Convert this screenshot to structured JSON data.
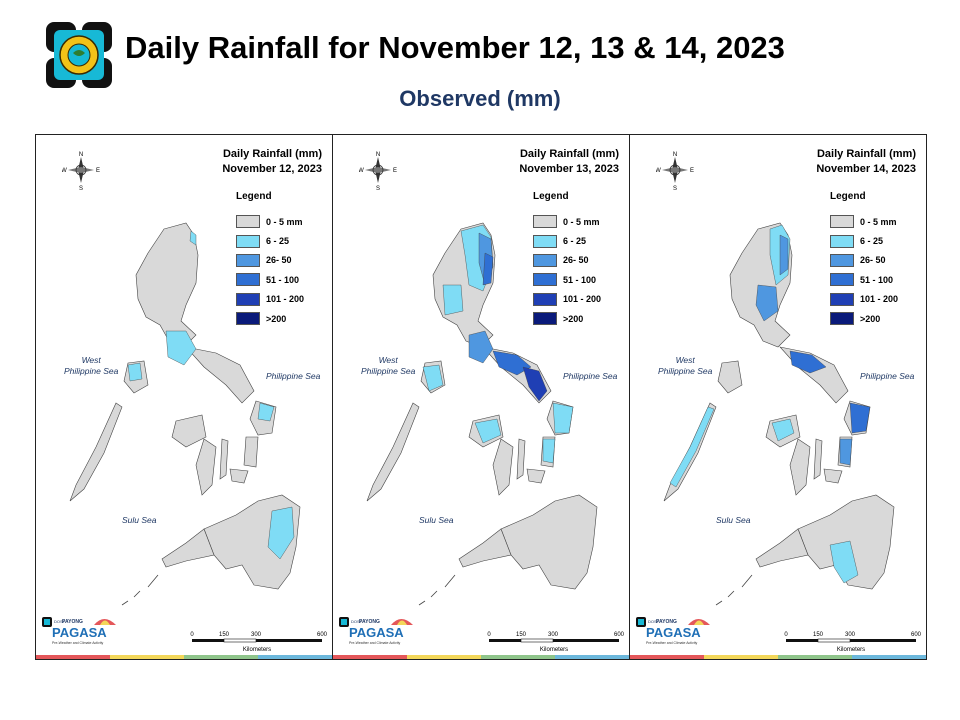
{
  "header": {
    "title": "Daily Rainfall for November 12, 13 & 14, 2023",
    "subtitle": "Observed (mm)"
  },
  "panels": [
    {
      "title_line1": "Daily Rainfall (mm)",
      "date": "November 12, 2023"
    },
    {
      "title_line1": "Daily Rainfall (mm)",
      "date": "November 13, 2023"
    },
    {
      "title_line1": "Daily Rainfall (mm)",
      "date": "November 14, 2023"
    }
  ],
  "legend": {
    "title": "Legend",
    "items": [
      {
        "label": "0 - 5 mm",
        "color": "#d9d9d9"
      },
      {
        "label": "6 - 25",
        "color": "#7fdcf5"
      },
      {
        "label": "26- 50",
        "color": "#4f97e0"
      },
      {
        "label": "51 - 100",
        "color": "#2f6fd3"
      },
      {
        "label": "101 - 200",
        "color": "#1f3fb4"
      },
      {
        "label": ">200",
        "color": "#0a1a7a"
      }
    ]
  },
  "labels": {
    "west_sea_line1": "West",
    "west_sea_line2": "Philippine Sea",
    "east_sea": "Philippine Sea",
    "sulu_sea": "Sulu Sea"
  },
  "compass": {
    "n": "N",
    "e": "E",
    "s": "S",
    "w": "W"
  },
  "scale": {
    "t0": "0",
    "t1": "150",
    "t2": "300",
    "t3": "600",
    "unit": "Kilometers"
  },
  "brand": {
    "dost": "DOST",
    "payong": "PAYONG",
    "pagasa": "PAGASA",
    "tagline": "Pre-Weather and Climate Activity"
  },
  "colors": {
    "land": "#d9d9d9",
    "stripe": [
      "#e4575a",
      "#f3d75a",
      "#8fc58b",
      "#6cb8dc"
    ]
  }
}
